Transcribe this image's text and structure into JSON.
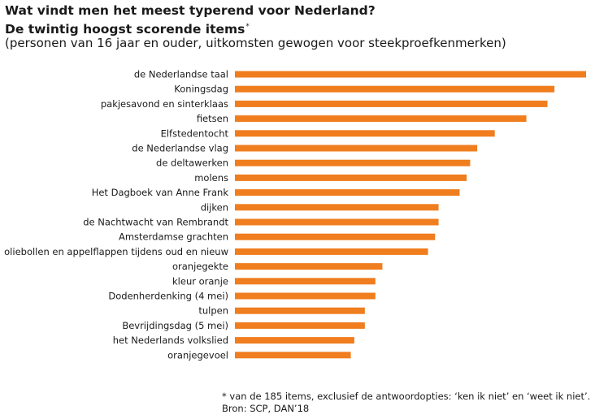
{
  "title": "Wat vindt men het meest typerend voor Nederland?",
  "subtitle": "De twintig hoogst scorende items",
  "subtitle_marker": "*",
  "note": "(personen van 16 jaar en ouder, uitkomsten gewogen voor steekproefkenmerken)",
  "footnote": "* van de 185 items, exclusief de antwoordopties: ‘ken ik niet’ en ‘weet ik niet’.",
  "source": "Bron: SCP, DAN’18",
  "chart_data": {
    "type": "bar",
    "orientation": "horizontal",
    "categories": [
      "de Nederlandse taal",
      "Koningsdag",
      "pakjesavond en sinterklaas",
      "fietsen",
      "Elfstedentocht",
      "de Nederlandse vlag",
      "de deltawerken",
      "molens",
      "Het Dagboek van Anne Frank",
      "dijken",
      "de Nachtwacht van Rembrandt",
      "Amsterdamse grachten",
      "oliebollen en appelflappen tijdens oud en nieuw",
      "oranjegekte",
      "kleur oranje",
      "Dodenherdenking (4 mei)",
      "tulpen",
      "Bevrijdingsdag (5 mei)",
      "het Nederlands volkslied",
      "oranjegevoel"
    ],
    "values": [
      100,
      91,
      89,
      83,
      74,
      69,
      67,
      66,
      64,
      58,
      58,
      57,
      55,
      42,
      40,
      40,
      37,
      37,
      34,
      33
    ],
    "xlim": [
      0,
      100
    ],
    "color": "#f07d1e",
    "grid": false,
    "legend": "none",
    "xlabel": "",
    "ylabel": ""
  }
}
